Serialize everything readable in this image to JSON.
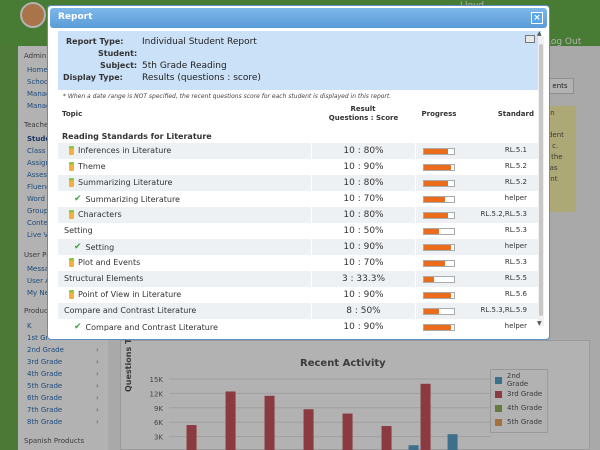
{
  "background": {
    "user_text": "Lloyd",
    "logout_label": "Log Out",
    "side_button": "ents",
    "side_note": [
      "on",
      "",
      "ident",
      "il c.",
      "r the",
      "sas",
      "ant"
    ],
    "sidebar": {
      "sections": [
        "Admin",
        "Teacher",
        "User Profile",
        "Products",
        "Spanish Products"
      ],
      "admin_items": [
        "Home",
        "Schools",
        "Manage",
        "Manage"
      ],
      "teacher_items": [
        "Student",
        "Class",
        "Assign",
        "Assess",
        "Fluency",
        "Word",
        "Group",
        "Content",
        "Live V"
      ],
      "profile_items": [
        "Message",
        "User A",
        "My Ne"
      ],
      "product_items": [
        "K",
        "1st Grade",
        "2nd Grade",
        "3rd Grade",
        "4th Grade",
        "5th Grade",
        "6th Grade",
        "7th Grade",
        "8th Grade"
      ]
    }
  },
  "chart_data": {
    "type": "bar",
    "title": "Recent Activity",
    "ylabel": "Questions Taken",
    "y_ticks": [
      "15K",
      "12K",
      "9K",
      "6K",
      "3K"
    ],
    "ylim": [
      0,
      15000
    ],
    "legend": [
      {
        "name": "2nd Grade",
        "color": "#5aa0c8"
      },
      {
        "name": "3rd Grade",
        "color": "#c8545c"
      },
      {
        "name": "4th Grade",
        "color": "#8fb05a"
      },
      {
        "name": "5th Grade",
        "color": "#e8a45a"
      }
    ],
    "groups": 8,
    "series": [
      {
        "name": "2nd Grade",
        "values": [
          0,
          0,
          0,
          0,
          0,
          0,
          1200,
          3500
        ]
      },
      {
        "name": "3rd Grade",
        "values": [
          5400,
          12400,
          11500,
          8700,
          7800,
          5200,
          14000,
          0
        ]
      }
    ]
  },
  "dialog": {
    "title": "Report",
    "close": "×",
    "info": {
      "report_type_label": "Report Type:",
      "report_type": "Individual Student Report",
      "student_label": "Student:",
      "student": "",
      "subject_label": "Subject:",
      "subject": "5th Grade Reading",
      "display_type_label": "Display Type:",
      "display_type": "Results (questions : score)"
    },
    "note": "* When a date range is NOT specified, the recent questions score for each student is displayed in this report.",
    "headers": {
      "topic": "Topic",
      "result": "Result",
      "result_sub": "Questions : Score",
      "progress": "Progress",
      "standard": "Standard"
    },
    "group_title": "Reading Standards for Literature",
    "rows": [
      {
        "icon": "pencil",
        "indent": 1,
        "topic": "Inferences in Literature",
        "score": "10 : 80%",
        "progress": 80,
        "standard": "RL.5.1"
      },
      {
        "icon": "pencil",
        "indent": 1,
        "topic": "Theme",
        "score": "10 : 90%",
        "progress": 90,
        "standard": "RL.5.2"
      },
      {
        "icon": "pencil",
        "indent": 1,
        "topic": "Summarizing Literature",
        "score": "10 : 80%",
        "progress": 80,
        "standard": "RL.5.2"
      },
      {
        "icon": "check",
        "indent": 2,
        "topic": "Summarizing Literature",
        "score": "10 : 70%",
        "progress": 70,
        "standard": "helper"
      },
      {
        "icon": "pencil",
        "indent": 1,
        "topic": "Characters",
        "score": "10 : 80%",
        "progress": 80,
        "standard": "RL.5.2,RL.5.3"
      },
      {
        "icon": "",
        "indent": 0,
        "topic": "Setting",
        "score": "10 : 50%",
        "progress": 50,
        "standard": "RL.5.3"
      },
      {
        "icon": "check",
        "indent": 2,
        "topic": "Setting",
        "score": "10 : 90%",
        "progress": 90,
        "standard": "helper"
      },
      {
        "icon": "pencil",
        "indent": 1,
        "topic": "Plot and Events",
        "score": "10 : 70%",
        "progress": 70,
        "standard": "RL.5.3"
      },
      {
        "icon": "",
        "indent": 0,
        "topic": "Structural Elements",
        "score": "3 : 33.3%",
        "progress": 33.3,
        "standard": "RL.5.5"
      },
      {
        "icon": "pencil",
        "indent": 1,
        "topic": "Point of View in Literature",
        "score": "10 : 90%",
        "progress": 90,
        "standard": "RL.5.6"
      },
      {
        "icon": "",
        "indent": 0,
        "topic": "Compare and Contrast Literature",
        "score": "8 : 50%",
        "progress": 50,
        "standard": "RL.5.3,RL.5.9"
      },
      {
        "icon": "check",
        "indent": 2,
        "topic": "Compare and Contrast Literature",
        "score": "10 : 90%",
        "progress": 90,
        "standard": "helper"
      }
    ]
  }
}
